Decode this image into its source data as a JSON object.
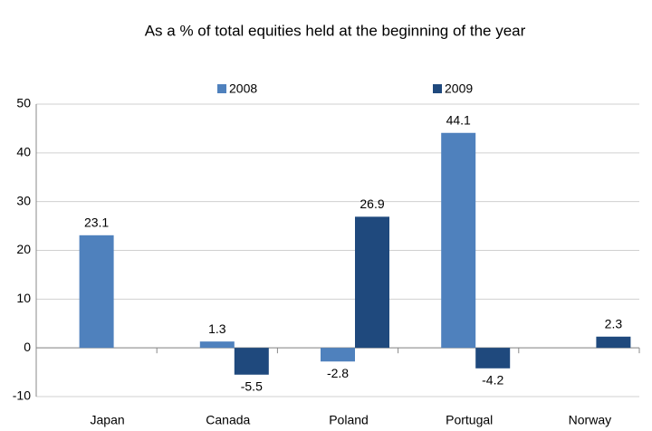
{
  "chart_data": {
    "type": "bar",
    "title": "As a % of total equities held at the beginning of the year",
    "categories": [
      "Japan",
      "Canada",
      "Poland",
      "Portugal",
      "Norway"
    ],
    "series": [
      {
        "name": "2008",
        "color": "#4f81bd",
        "values": [
          23.1,
          1.3,
          -2.8,
          44.1,
          null
        ]
      },
      {
        "name": "2009",
        "color": "#1f497d",
        "values": [
          null,
          -5.5,
          26.9,
          -4.2,
          2.3
        ]
      }
    ],
    "ylim": [
      -10,
      50
    ],
    "yticks": [
      -10,
      0,
      10,
      20,
      30,
      40,
      50
    ],
    "grid": true,
    "legend": "top"
  }
}
